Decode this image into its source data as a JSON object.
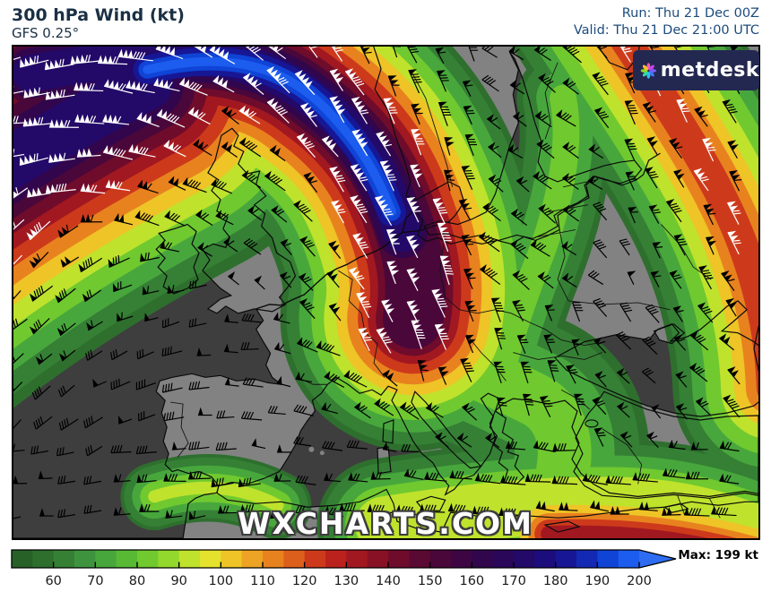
{
  "header": {
    "title": "300 hPa Wind (kt)",
    "model": "GFS 0.25°",
    "run": "Run: Thu 21 Dec 00Z",
    "valid": "Valid: Thu 21 Dec 21:00 UTC"
  },
  "branding": {
    "logo_text": "metdesk",
    "logo_bg": "#232850",
    "petal_colors": [
      "#ff57b1",
      "#c447f0",
      "#7b5cf5",
      "#3f7bf7",
      "#2fc1f0",
      "#31d9a8",
      "#8fd62c",
      "#f5c12e"
    ],
    "watermark": "WXCHARTS.COM"
  },
  "colors": {
    "sea": "#3e3e3e",
    "land": "#828282",
    "coast": "#0b0b0b",
    "border": "#151515",
    "header_title": "#1b3044",
    "header_time": "#1c4b7e"
  },
  "legend": {
    "start": 50,
    "step": 5,
    "tick_values": [
      60,
      70,
      80,
      90,
      100,
      110,
      120,
      130,
      140,
      150,
      160,
      170,
      180,
      190,
      200
    ],
    "max_label": "Max: 199 kt",
    "arrow_color": "#2e6cf2",
    "palette": [
      [
        50,
        "#286128"
      ],
      [
        55,
        "#2e6f2e"
      ],
      [
        60,
        "#358035"
      ],
      [
        65,
        "#3e943e"
      ],
      [
        70,
        "#48a73c"
      ],
      [
        75,
        "#58b935"
      ],
      [
        80,
        "#70c92f"
      ],
      [
        85,
        "#93d82c"
      ],
      [
        90,
        "#bfe22d"
      ],
      [
        95,
        "#e4e22c"
      ],
      [
        100,
        "#eec427"
      ],
      [
        105,
        "#eda323"
      ],
      [
        110,
        "#e8821f"
      ],
      [
        115,
        "#dd5f1c"
      ],
      [
        120,
        "#cd3a1b"
      ],
      [
        125,
        "#bb221d"
      ],
      [
        130,
        "#a21821"
      ],
      [
        135,
        "#881126"
      ],
      [
        140,
        "#6f0c2b"
      ],
      [
        145,
        "#5a0932"
      ],
      [
        150,
        "#4a073a"
      ],
      [
        155,
        "#3d0643"
      ],
      [
        160,
        "#32064d"
      ],
      [
        165,
        "#2a0759"
      ],
      [
        170,
        "#230968"
      ],
      [
        175,
        "#1c0d7c"
      ],
      [
        180,
        "#171795"
      ],
      [
        185,
        "#1329b4"
      ],
      [
        190,
        "#0f44d6"
      ],
      [
        195,
        "#1c5cee"
      ]
    ]
  },
  "chart_data": {
    "type": "heatmap",
    "title": "300 hPa Wind (kt)",
    "model": "GFS 0.25°",
    "run": "Thu 21 Dec 00Z",
    "valid": "Thu 21 Dec 21:00 UTC",
    "units": "kt",
    "region": "Europe / North Atlantic",
    "scale_range": [
      50,
      200
    ],
    "scale_ticks": [
      60,
      70,
      80,
      90,
      100,
      110,
      120,
      130,
      140,
      150,
      160,
      170,
      180,
      190,
      200
    ],
    "max_value": 199,
    "features": [
      "Jet streak up to 199 kt (blue core) from the North Atlantic across Scotland and the North Sea, curving south to the Alps",
      "Broad 60-150 kt bands wrapping over Ireland, England, France and the Bay of Biscay",
      "Secondary 60-125 kt jet along the eastern edge of the map (western Russia / Ukraine)",
      "Subtropical jet 60-135 kt along North Africa, Turkey and the Middle East",
      "Local 60-90 kt wind maximum southwest of Iberia",
      "Weak 55-80 kt patches over the Baltic states and the Balkans"
    ]
  }
}
